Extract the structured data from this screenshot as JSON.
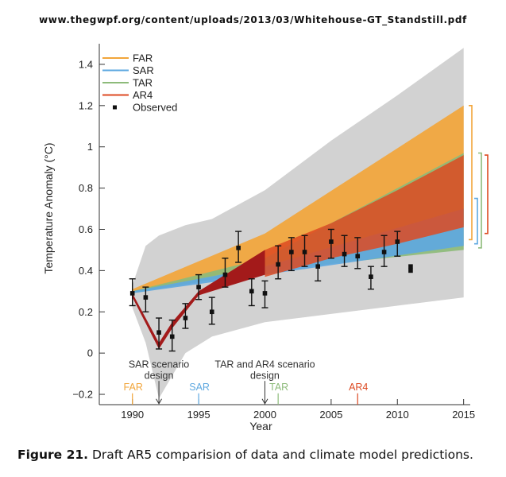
{
  "header": {
    "url": "www.thegwpf.org/content/uploads/2013/03/Whitehouse-GT_Standstill.pdf"
  },
  "caption": {
    "label": "Figure 21.",
    "text": "Draft AR5 comparision of data and climate model predictions."
  },
  "colors": {
    "FAR": "#f2a53a",
    "SAR": "#5ea8e0",
    "TAR": "#8dbb7a",
    "AR4": "#dd4a22",
    "envelope": "#d2d2d2",
    "observed": "#111111",
    "dark_red": "#a31a1a"
  },
  "chart_data": {
    "type": "line",
    "xlabel": "Year",
    "ylabel": "Temperature Anomaly (°C)",
    "xlim": [
      1987.5,
      2015.5
    ],
    "ylim": [
      -0.25,
      1.5
    ],
    "xticks": [
      1990,
      1995,
      2000,
      2005,
      2010,
      2015
    ],
    "yticks": [
      -0.2,
      0,
      0.2,
      0.4,
      0.6,
      0.8,
      1,
      1.2,
      1.4
    ],
    "ytick_labels": [
      "−0.2",
      "0",
      "0.2",
      "0.4",
      "0.6",
      "0.8",
      "1",
      "1.2",
      "1.4"
    ],
    "legend": {
      "placement": "top-left",
      "entries": [
        {
          "name": "FAR",
          "color": "#f2a53a",
          "kind": "line"
        },
        {
          "name": "SAR",
          "color": "#5ea8e0",
          "kind": "line"
        },
        {
          "name": "TAR",
          "color": "#8dbb7a",
          "kind": "line"
        },
        {
          "name": "AR4",
          "color": "#dd4a22",
          "kind": "line"
        },
        {
          "name": "Observed",
          "color": "#111111",
          "kind": "marker"
        }
      ]
    },
    "envelope": {
      "x": [
        1990,
        1991,
        1992,
        1994,
        1996,
        2000,
        2005,
        2010,
        2015
      ],
      "low": [
        0.22,
        0.05,
        -0.22,
        0.0,
        0.08,
        0.15,
        0.19,
        0.23,
        0.27
      ],
      "high": [
        0.33,
        0.52,
        0.57,
        0.62,
        0.65,
        0.79,
        1.03,
        1.25,
        1.48
      ]
    },
    "series": [
      {
        "name": "FAR",
        "color": "#f2a53a",
        "x": [
          1990,
          2000,
          2015
        ],
        "low": [
          0.29,
          0.43,
          0.62
        ],
        "high": [
          0.31,
          0.58,
          1.2
        ]
      },
      {
        "name": "TAR",
        "color": "#8dbb7a",
        "x": [
          1990,
          2000,
          2015
        ],
        "low": [
          0.29,
          0.4,
          0.5
        ],
        "high": [
          0.3,
          0.46,
          0.97
        ]
      },
      {
        "name": "SAR",
        "color": "#5ea8e0",
        "x": [
          1990,
          2000,
          2015
        ],
        "low": [
          0.29,
          0.38,
          0.52
        ],
        "high": [
          0.3,
          0.42,
          0.7
        ]
      },
      {
        "name": "AR4",
        "color": "#dd4a22",
        "x": [
          2000,
          2005,
          2010,
          2015
        ],
        "low": [
          0.37,
          0.46,
          0.53,
          0.61
        ],
        "high": [
          0.5,
          0.63,
          0.79,
          0.96
        ]
      }
    ],
    "hindcast": {
      "x": [
        1990,
        1992,
        1993,
        1995,
        2000
      ],
      "low": [
        0.27,
        0.02,
        0.12,
        0.28,
        0.38
      ],
      "high": [
        0.29,
        0.05,
        0.15,
        0.3,
        0.5
      ]
    },
    "observed": [
      {
        "x": 1990,
        "y": 0.29,
        "lo": 0.23,
        "hi": 0.36
      },
      {
        "x": 1991,
        "y": 0.27,
        "lo": 0.2,
        "hi": 0.32
      },
      {
        "x": 1992,
        "y": 0.1,
        "lo": 0.02,
        "hi": 0.17
      },
      {
        "x": 1993,
        "y": 0.08,
        "lo": 0.01,
        "hi": 0.16
      },
      {
        "x": 1994,
        "y": 0.17,
        "lo": 0.12,
        "hi": 0.24
      },
      {
        "x": 1995,
        "y": 0.32,
        "lo": 0.26,
        "hi": 0.38
      },
      {
        "x": 1996,
        "y": 0.2,
        "lo": 0.14,
        "hi": 0.27
      },
      {
        "x": 1997,
        "y": 0.38,
        "lo": 0.32,
        "hi": 0.46
      },
      {
        "x": 1998,
        "y": 0.51,
        "lo": 0.44,
        "hi": 0.59
      },
      {
        "x": 1999,
        "y": 0.3,
        "lo": 0.23,
        "hi": 0.36
      },
      {
        "x": 2000,
        "y": 0.29,
        "lo": 0.22,
        "hi": 0.35
      },
      {
        "x": 2001,
        "y": 0.43,
        "lo": 0.36,
        "hi": 0.52
      },
      {
        "x": 2002,
        "y": 0.49,
        "lo": 0.4,
        "hi": 0.56
      },
      {
        "x": 2003,
        "y": 0.49,
        "lo": 0.42,
        "hi": 0.57
      },
      {
        "x": 2004,
        "y": 0.42,
        "lo": 0.35,
        "hi": 0.47
      },
      {
        "x": 2005,
        "y": 0.54,
        "lo": 0.46,
        "hi": 0.6
      },
      {
        "x": 2006,
        "y": 0.48,
        "lo": 0.42,
        "hi": 0.57
      },
      {
        "x": 2007,
        "y": 0.47,
        "lo": 0.41,
        "hi": 0.56
      },
      {
        "x": 2008,
        "y": 0.37,
        "lo": 0.31,
        "hi": 0.42
      },
      {
        "x": 2009,
        "y": 0.49,
        "lo": 0.42,
        "hi": 0.57
      },
      {
        "x": 2010,
        "y": 0.54,
        "lo": 0.47,
        "hi": 0.59
      },
      {
        "x": 2011,
        "y": 0.42,
        "lo": null,
        "hi": null
      },
      {
        "x": 2011,
        "y": 0.4,
        "lo": null,
        "hi": null
      }
    ],
    "range_brackets": [
      {
        "name": "FAR",
        "color": "#f2a53a",
        "low": 0.55,
        "high": 1.2
      },
      {
        "name": "TAR",
        "color": "#8dbb7a",
        "low": 0.51,
        "high": 0.97
      },
      {
        "name": "SAR",
        "color": "#5ea8e0",
        "low": 0.53,
        "high": 0.75
      },
      {
        "name": "AR4",
        "color": "#dd4a22",
        "low": 0.58,
        "high": 0.96
      }
    ],
    "scenario_markers": [
      {
        "label": "FAR",
        "x": 1990,
        "color": "#f2a53a"
      },
      {
        "label": "SAR",
        "x": 1995,
        "color": "#5ea8e0"
      },
      {
        "label": "TAR",
        "x": 2001,
        "color": "#8dbb7a"
      },
      {
        "label": "AR4",
        "x": 2007,
        "color": "#dd4a22"
      }
    ],
    "annotations": [
      {
        "x": 1992,
        "lines": [
          "SAR scenario",
          "design"
        ]
      },
      {
        "x": 2000,
        "lines": [
          "TAR and AR4 scenario",
          "design"
        ]
      }
    ]
  }
}
